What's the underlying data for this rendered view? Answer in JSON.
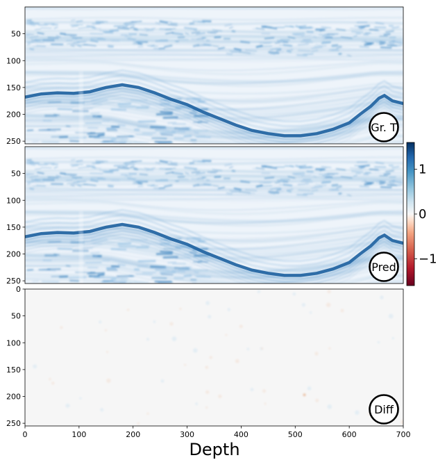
{
  "chart_data": [
    {
      "type": "heatmap",
      "badge": "Gr. T",
      "ylim": [
        255,
        0
      ],
      "xlim": [
        0,
        700
      ],
      "yticks": [
        "50",
        "100",
        "150",
        "200",
        "250"
      ],
      "content": "seismic-section"
    },
    {
      "type": "heatmap",
      "badge": "Pred",
      "ylim": [
        255,
        0
      ],
      "xlim": [
        0,
        700
      ],
      "yticks": [
        "50",
        "100",
        "150",
        "200",
        "250"
      ],
      "content": "seismic-section"
    },
    {
      "type": "heatmap",
      "badge": "Diff",
      "ylim": [
        255,
        0
      ],
      "xlim": [
        0,
        700
      ],
      "xticks": [
        "0",
        "100",
        "200",
        "300",
        "400",
        "500",
        "600",
        "700"
      ],
      "yticks": [
        "0",
        "50",
        "100",
        "150",
        "200",
        "250"
      ],
      "content": "near-zero-residual"
    }
  ],
  "colorbar": {
    "colormap": "RdBu",
    "range": [
      -1.6,
      1.6
    ],
    "ticks": [
      "1",
      "0",
      "−1"
    ],
    "tick_values": [
      1,
      0,
      -1
    ]
  },
  "xlabel": "Depth",
  "colors": {
    "strong_positive": "#1a5fa6",
    "weak_positive": "#d6e8f4",
    "zero": "#f7f7f7",
    "negative": "#c8a08a"
  }
}
